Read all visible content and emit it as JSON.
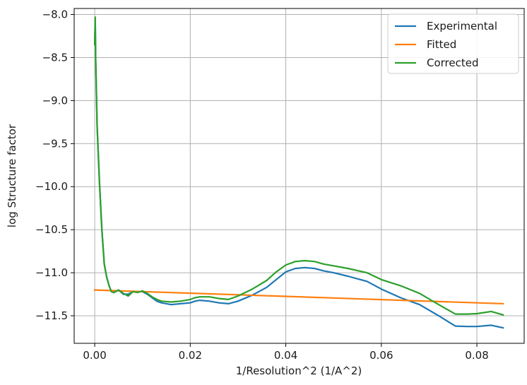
{
  "chart_data": {
    "type": "line",
    "title": "",
    "xlabel": "1/Resolution^2 (1/A^2)",
    "ylabel": "log Structure factor",
    "xlim": [
      -0.0043,
      0.0899
    ],
    "ylim": [
      -11.82,
      -7.93
    ],
    "xticks": [
      0.0,
      0.02,
      0.04,
      0.06,
      0.08
    ],
    "xtick_labels": [
      "0.00",
      "0.02",
      "0.04",
      "0.06",
      "0.08"
    ],
    "yticks": [
      -8.0,
      -8.5,
      -9.0,
      -9.5,
      -10.0,
      -10.5,
      -11.0,
      -11.5
    ],
    "ytick_labels": [
      "−8.0",
      "−8.5",
      "−9.0",
      "−9.5",
      "−10.0",
      "−10.5",
      "−11.0",
      "−11.5"
    ],
    "grid": true,
    "legend_position": "top-right",
    "series": [
      {
        "name": "Experimental",
        "color": "#1f77b4",
        "x": [
          0.0,
          0.0001,
          0.0002,
          0.0005,
          0.001,
          0.0015,
          0.002,
          0.0025,
          0.003,
          0.0035,
          0.004,
          0.005,
          0.006,
          0.007,
          0.008,
          0.009,
          0.01,
          0.011,
          0.012,
          0.013,
          0.014,
          0.016,
          0.018,
          0.02,
          0.021,
          0.022,
          0.024,
          0.026,
          0.028,
          0.03,
          0.033,
          0.036,
          0.038,
          0.04,
          0.042,
          0.044,
          0.046,
          0.048,
          0.05,
          0.053,
          0.057,
          0.06,
          0.064,
          0.068,
          0.072,
          0.0755,
          0.078,
          0.08,
          0.083,
          0.0855
        ],
        "y": [
          -8.35,
          -8.05,
          -8.5,
          -9.3,
          -9.95,
          -10.5,
          -10.9,
          -11.05,
          -11.15,
          -11.22,
          -11.23,
          -11.2,
          -11.25,
          -11.25,
          -11.22,
          -11.22,
          -11.22,
          -11.25,
          -11.29,
          -11.33,
          -11.35,
          -11.37,
          -11.36,
          -11.35,
          -11.33,
          -11.32,
          -11.33,
          -11.35,
          -11.36,
          -11.33,
          -11.26,
          -11.17,
          -11.08,
          -10.99,
          -10.95,
          -10.94,
          -10.95,
          -10.98,
          -11.0,
          -11.04,
          -11.1,
          -11.19,
          -11.29,
          -11.37,
          -11.5,
          -11.62,
          -11.625,
          -11.625,
          -11.61,
          -11.64
        ]
      },
      {
        "name": "Fitted",
        "color": "#ff7f0e",
        "x": [
          0.0,
          0.0855
        ],
        "y": [
          -11.2,
          -11.36
        ]
      },
      {
        "name": "Corrected",
        "color": "#2ca02c",
        "x": [
          0.0,
          0.0001,
          0.0002,
          0.0005,
          0.001,
          0.0015,
          0.002,
          0.0025,
          0.003,
          0.0035,
          0.004,
          0.005,
          0.006,
          0.007,
          0.008,
          0.009,
          0.01,
          0.011,
          0.012,
          0.013,
          0.014,
          0.016,
          0.018,
          0.02,
          0.021,
          0.022,
          0.024,
          0.026,
          0.028,
          0.03,
          0.033,
          0.036,
          0.038,
          0.04,
          0.042,
          0.044,
          0.046,
          0.048,
          0.05,
          0.053,
          0.057,
          0.06,
          0.064,
          0.068,
          0.072,
          0.0755,
          0.078,
          0.08,
          0.083,
          0.0855
        ],
        "y": [
          -8.35,
          -8.03,
          -8.5,
          -9.3,
          -9.95,
          -10.5,
          -10.9,
          -11.05,
          -11.15,
          -11.22,
          -11.23,
          -11.2,
          -11.24,
          -11.27,
          -11.22,
          -11.23,
          -11.21,
          -11.24,
          -11.28,
          -11.31,
          -11.33,
          -11.34,
          -11.33,
          -11.31,
          -11.29,
          -11.28,
          -11.28,
          -11.3,
          -11.31,
          -11.27,
          -11.19,
          -11.09,
          -10.99,
          -10.91,
          -10.87,
          -10.86,
          -10.87,
          -10.9,
          -10.92,
          -10.95,
          -11.0,
          -11.08,
          -11.15,
          -11.24,
          -11.37,
          -11.48,
          -11.48,
          -11.475,
          -11.45,
          -11.49
        ]
      }
    ]
  }
}
